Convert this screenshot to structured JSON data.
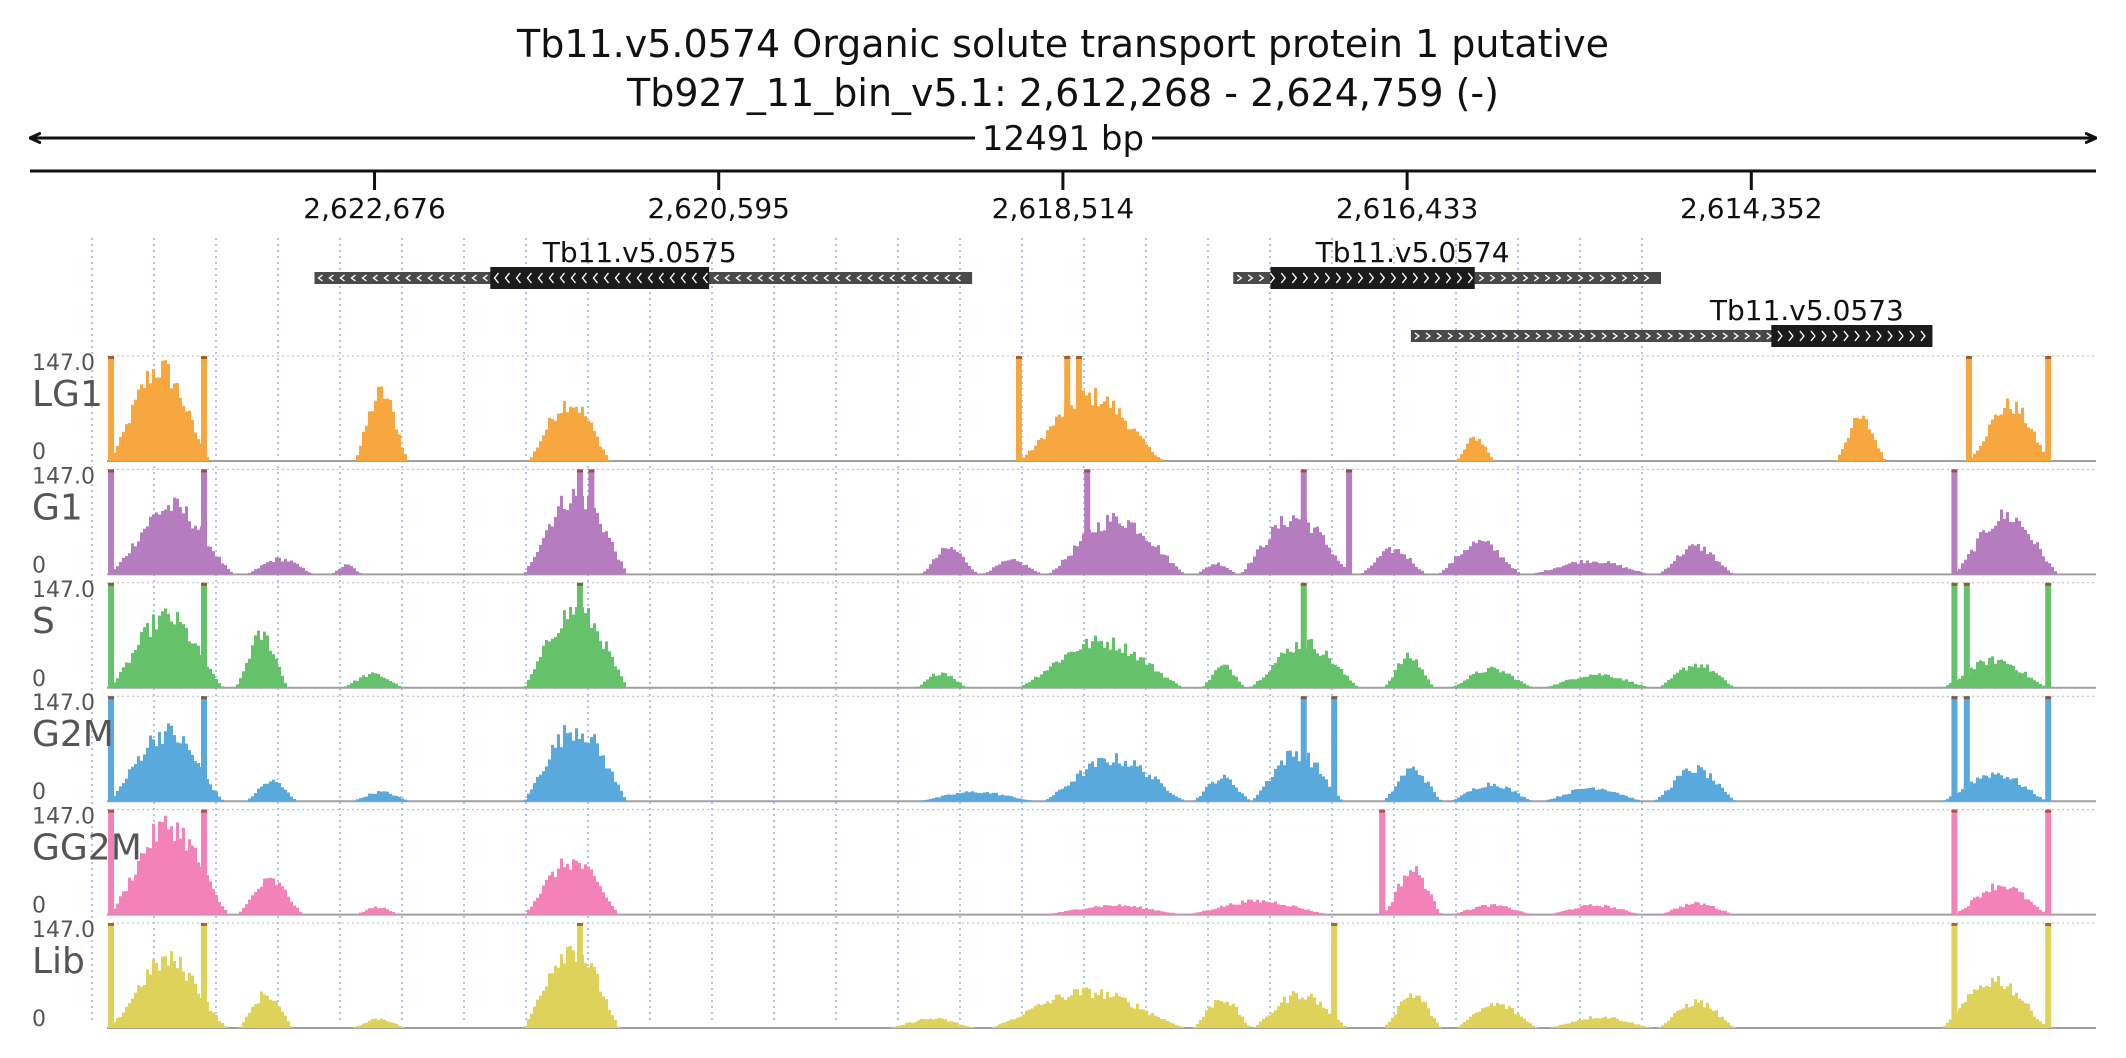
{
  "header": {
    "title": "Tb11.v5.0574  Organic solute transport protein 1  putative",
    "locus": "Tb927_11_bin_v5.1: 2,612,268 - 2,624,759 (-)",
    "span_label": "12491 bp"
  },
  "chart_data": {
    "type": "area",
    "title": "Tb11.v5.0574  Organic solute transport protein 1  putative",
    "region": {
      "chrom": "Tb927_11_bin_v5.1",
      "start": 2612268,
      "end": 2624759,
      "strand": "-"
    },
    "x_axis": {
      "reversed": true,
      "ticks": [
        2622676,
        2620595,
        2618514,
        2616433,
        2614352
      ],
      "tick_labels": [
        "2,622,676",
        "2,620,595",
        "2,618,514",
        "2,616,433",
        "2,614,352"
      ]
    },
    "y_range": [
      0,
      147.0
    ],
    "y_max_label": "147.0",
    "y_min_label": "0",
    "genes": [
      {
        "name": "Tb11.v5.0575",
        "strand": "-",
        "start": 2619063,
        "end": 2623039,
        "cds": [
          2620653,
          2621976
        ]
      },
      {
        "name": "Tb11.v5.0574",
        "strand": "+",
        "start": 2614898,
        "end": 2617484,
        "cds": [
          2616024,
          2617259
        ]
      },
      {
        "name": "Tb11.v5.0573",
        "strand": "+",
        "start": 2613257,
        "end": 2616410,
        "cds": [
          2613257,
          2614231
        ]
      }
    ],
    "series": [
      {
        "name": "LG1",
        "color": "#f7a740",
        "peaks": [
          [
            2624291,
            2623675,
            150,
            0.45
          ],
          [
            2622802,
            2622483,
            110,
            0.6
          ],
          [
            2621750,
            2621261,
            95,
            0.7
          ],
          [
            2618794,
            2617908,
            105,
            0.45
          ],
          [
            2616144,
            2615912,
            38,
            0.5
          ],
          [
            2613850,
            2613548,
            68,
            0.6
          ],
          [
            2613049,
            2612547,
            90,
            0.45
          ]
        ],
        "flags": [
          2624269,
          2623707,
          2618780,
          2618488,
          2618417,
          2613036,
          2612557
        ]
      },
      {
        "name": "G1",
        "color": "#b57cc0",
        "peaks": [
          [
            2624291,
            2623534,
            110,
            0.45
          ],
          [
            2623463,
            2623046,
            25,
            0.5
          ],
          [
            2622946,
            2622757,
            15,
            0.5
          ],
          [
            2621779,
            2621156,
            128,
            0.75
          ],
          [
            2619387,
            2619027,
            42,
            0.4
          ],
          [
            2619016,
            2618643,
            22,
            0.5
          ],
          [
            2618614,
            2617779,
            90,
            0.55
          ],
          [
            2617719,
            2617464,
            18,
            0.5
          ],
          [
            2617452,
            2616784,
            92,
            0.65
          ],
          [
            2616724,
            2616321,
            40,
            0.5
          ],
          [
            2616257,
            2615748,
            52,
            0.5
          ],
          [
            2615702,
            2614961,
            22,
            0.5
          ],
          [
            2614925,
            2614465,
            45,
            0.5
          ],
          [
            2613136,
            2612503,
            95,
            0.55
          ]
        ],
        "flags": [
          2624269,
          2623707,
          2621434,
          2621365,
          2618367,
          2617058,
          2616784,
          2613124
        ]
      },
      {
        "name": "S",
        "color": "#66c26a",
        "peaks": [
          [
            2624291,
            2623594,
            115,
            0.45
          ],
          [
            2623524,
            2623205,
            85,
            0.5
          ],
          [
            2622883,
            2622504,
            22,
            0.5
          ],
          [
            2621779,
            2621156,
            125,
            0.7
          ],
          [
            2619409,
            2619099,
            25,
            0.5
          ],
          [
            2618794,
            2617789,
            75,
            0.55
          ],
          [
            2617685,
            2617415,
            35,
            0.5
          ],
          [
            2617394,
            2616729,
            72,
            0.55
          ],
          [
            2616584,
            2616274,
            50,
            0.5
          ],
          [
            2616185,
            2615676,
            30,
            0.5
          ],
          [
            2615623,
            2614961,
            22,
            0.5
          ],
          [
            2614925,
            2614454,
            38,
            0.5
          ],
          [
            2613207,
            2612567,
            45,
            0.5
          ]
        ],
        "flags": [
          2624269,
          2623707,
          2621434,
          2617058,
          2613124,
          2613049,
          2612557
        ]
      },
      {
        "name": "G2M",
        "color": "#5aa9dc",
        "peaks": [
          [
            2624291,
            2623594,
            112,
            0.5
          ],
          [
            2623463,
            2623149,
            32,
            0.5
          ],
          [
            2622822,
            2622469,
            15,
            0.5
          ],
          [
            2621779,
            2621156,
            118,
            0.7
          ],
          [
            2619409,
            2618683,
            15,
            0.5
          ],
          [
            2618643,
            2617779,
            68,
            0.55
          ],
          [
            2617735,
            2617384,
            38,
            0.5
          ],
          [
            2617384,
            2616829,
            78,
            0.6
          ],
          [
            2616584,
            2616232,
            52,
            0.5
          ],
          [
            2616185,
            2615676,
            28,
            0.5
          ],
          [
            2615623,
            2615011,
            22,
            0.5
          ],
          [
            2614949,
            2614454,
            52,
            0.5
          ],
          [
            2613207,
            2612567,
            45,
            0.5
          ]
        ],
        "flags": [
          2624269,
          2623707,
          2617058,
          2616874,
          2613124,
          2613049,
          2612557
        ]
      },
      {
        "name": "GG2M",
        "color": "#f382b8",
        "peaks": [
          [
            2624291,
            2623564,
            145,
            0.45
          ],
          [
            2623514,
            2623114,
            55,
            0.5
          ],
          [
            2622802,
            2622532,
            12,
            0.5
          ],
          [
            2621779,
            2621206,
            85,
            0.7
          ],
          [
            2618644,
            2617779,
            15,
            0.5
          ],
          [
            2617779,
            2616904,
            22,
            0.5
          ],
          [
            2616584,
            2616232,
            72,
            0.5
          ],
          [
            2616185,
            2615676,
            15,
            0.5
          ],
          [
            2615594,
            2615011,
            15,
            0.5
          ],
          [
            2614925,
            2614454,
            18,
            0.5
          ],
          [
            2613136,
            2612567,
            48,
            0.5
          ]
        ],
        "flags": [
          2624269,
          2623707,
          2616584,
          2613124,
          2612557
        ]
      },
      {
        "name": "Lib",
        "color": "#dfd25a",
        "peaks": [
          [
            2624291,
            2623575,
            110,
            0.45
          ],
          [
            2623504,
            2623175,
            55,
            0.5
          ],
          [
            2622822,
            2622493,
            15,
            0.5
          ],
          [
            2621779,
            2621206,
            130,
            0.7
          ],
          [
            2619576,
            2619046,
            15,
            0.5
          ],
          [
            2618964,
            2617779,
            58,
            0.55
          ],
          [
            2617735,
            2617384,
            48,
            0.5
          ],
          [
            2617374,
            2616799,
            55,
            0.55
          ],
          [
            2616584,
            2616232,
            55,
            0.5
          ],
          [
            2616154,
            2615646,
            38,
            0.5
          ],
          [
            2615594,
            2614954,
            18,
            0.5
          ],
          [
            2614925,
            2614454,
            42,
            0.5
          ],
          [
            2613207,
            2612567,
            78,
            0.55
          ]
        ],
        "flags": [
          2624269,
          2623707,
          2621434,
          2616874,
          2613124,
          2612557
        ]
      }
    ],
    "grid": {
      "vertical": true,
      "style": "dotted",
      "color": "#8fb3e2"
    }
  }
}
